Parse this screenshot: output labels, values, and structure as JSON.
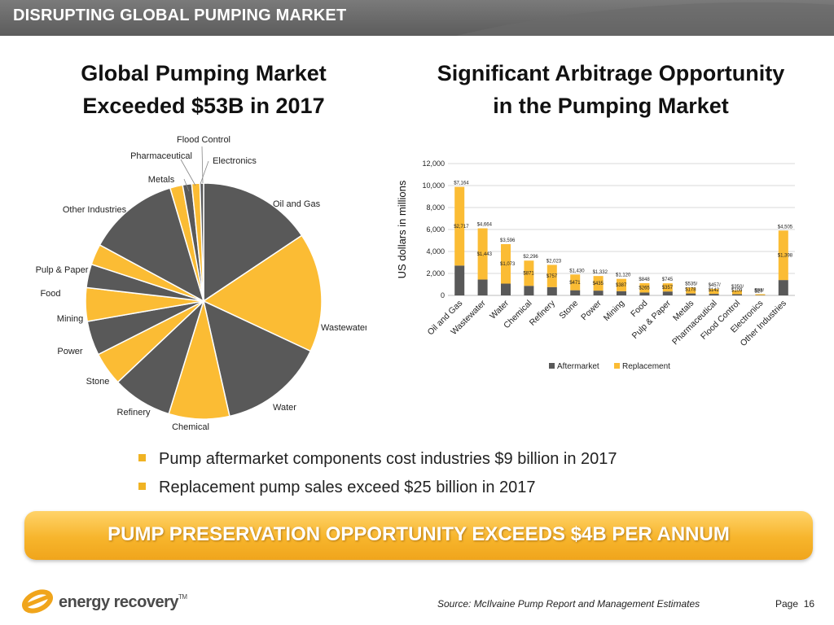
{
  "header": {
    "title": "DISRUPTING GLOBAL PUMPING MARKET"
  },
  "left_title": {
    "line1": "Global Pumping Market",
    "line2": "Exceeded $53B in 2017"
  },
  "right_title": {
    "line1": "Significant Arbitrage Opportunity",
    "line2": "in the Pumping Market"
  },
  "colors": {
    "gray": "#595959",
    "gold": "#fbbc34",
    "banner": "#f7b52c"
  },
  "chart_data": [
    {
      "type": "pie",
      "title": "",
      "slices": [
        {
          "label": "Oil and Gas",
          "value": 12.6,
          "color": "#595959"
        },
        {
          "label": "Wastewater",
          "value": 13.2,
          "color": "#fbbc34"
        },
        {
          "label": "Water",
          "value": 11.7,
          "color": "#595959"
        },
        {
          "label": "Chemical",
          "value": 6.7,
          "color": "#fbbc34"
        },
        {
          "label": "Refinery",
          "value": 6.6,
          "color": "#595959"
        },
        {
          "label": "Stone",
          "value": 3.7,
          "color": "#fbbc34"
        },
        {
          "label": "Power",
          "value": 3.8,
          "color": "#595959"
        },
        {
          "label": "Mining",
          "value": 3.7,
          "color": "#fbbc34"
        },
        {
          "label": "Food",
          "value": 2.6,
          "color": "#595959"
        },
        {
          "label": "Pulp & Paper",
          "value": 2.3,
          "color": "#fbbc34"
        },
        {
          "label": "Other Industries",
          "value": 10.1,
          "color": "#595959"
        },
        {
          "label": "Metals",
          "value": 1.4,
          "color": "#fbbc34"
        },
        {
          "label": "Pharmaceutical",
          "value": 1.0,
          "color": "#595959"
        },
        {
          "label": "Electronics",
          "value": 0.9,
          "color": "#fbbc34"
        },
        {
          "label": "Flood Control",
          "value": 0.4,
          "color": "#595959"
        }
      ]
    },
    {
      "type": "bar",
      "stacked": true,
      "title": "",
      "ylabel": "US dollars in millions",
      "ylim": [
        0,
        12000
      ],
      "yticks": [
        "0",
        "2,000",
        "4,000",
        "6,000",
        "8,000",
        "10,000",
        "12,000"
      ],
      "grid": true,
      "legend": "bottom",
      "categories": [
        "Oil and Gas",
        "Wastewater",
        "Water",
        "Chemical",
        "Refinery",
        "Stone",
        "Power",
        "Mining",
        "Food",
        "Pulp & Paper",
        "Metals",
        "Pharmaceutical",
        "Flood Control",
        "Electronics",
        "Other Industries"
      ],
      "series": [
        {
          "name": "Aftermarket",
          "color": "#595959",
          "values": [
            2717,
            1443,
            1073,
            871,
            757,
            471,
            435,
            387,
            265,
            357,
            178,
            142,
            109,
            27,
            1398
          ],
          "labels": [
            "$2,717",
            "$1,443",
            "$1,073",
            "$871",
            "$757",
            "$471",
            "$435",
            "$387",
            "$265",
            "$357",
            "$178",
            "$142",
            "$109",
            "$27",
            "$1,398"
          ]
        },
        {
          "name": "Replacement",
          "color": "#fbbc34",
          "values": [
            7164,
            4664,
            3596,
            2296,
            2023,
            1430,
            1332,
            1120,
            848,
            745,
            535,
            457,
            350,
            88,
            4505
          ],
          "labels": [
            "$7,164",
            "$4,664",
            "$3,596",
            "$2,296",
            "$2,023",
            "$1,430",
            "$1,332",
            "$1,120",
            "$848",
            "$745",
            "$535/",
            "$457/",
            "$350/",
            "$88/",
            "$4,505"
          ]
        }
      ]
    }
  ],
  "bullets": [
    "Pump aftermarket components cost industries $9 billion in 2017",
    "Replacement pump sales exceed $25 billion in 2017"
  ],
  "banner": {
    "text": "PUMP PRESERVATION OPPORTUNITY EXCEEDS $4B PER ANNUM"
  },
  "footer": {
    "logo_text": "energy recovery",
    "logo_tm": "TM",
    "source": "Source: McIlvaine Pump Report and Management Estimates",
    "page_label": "Page",
    "page_number": "16"
  }
}
